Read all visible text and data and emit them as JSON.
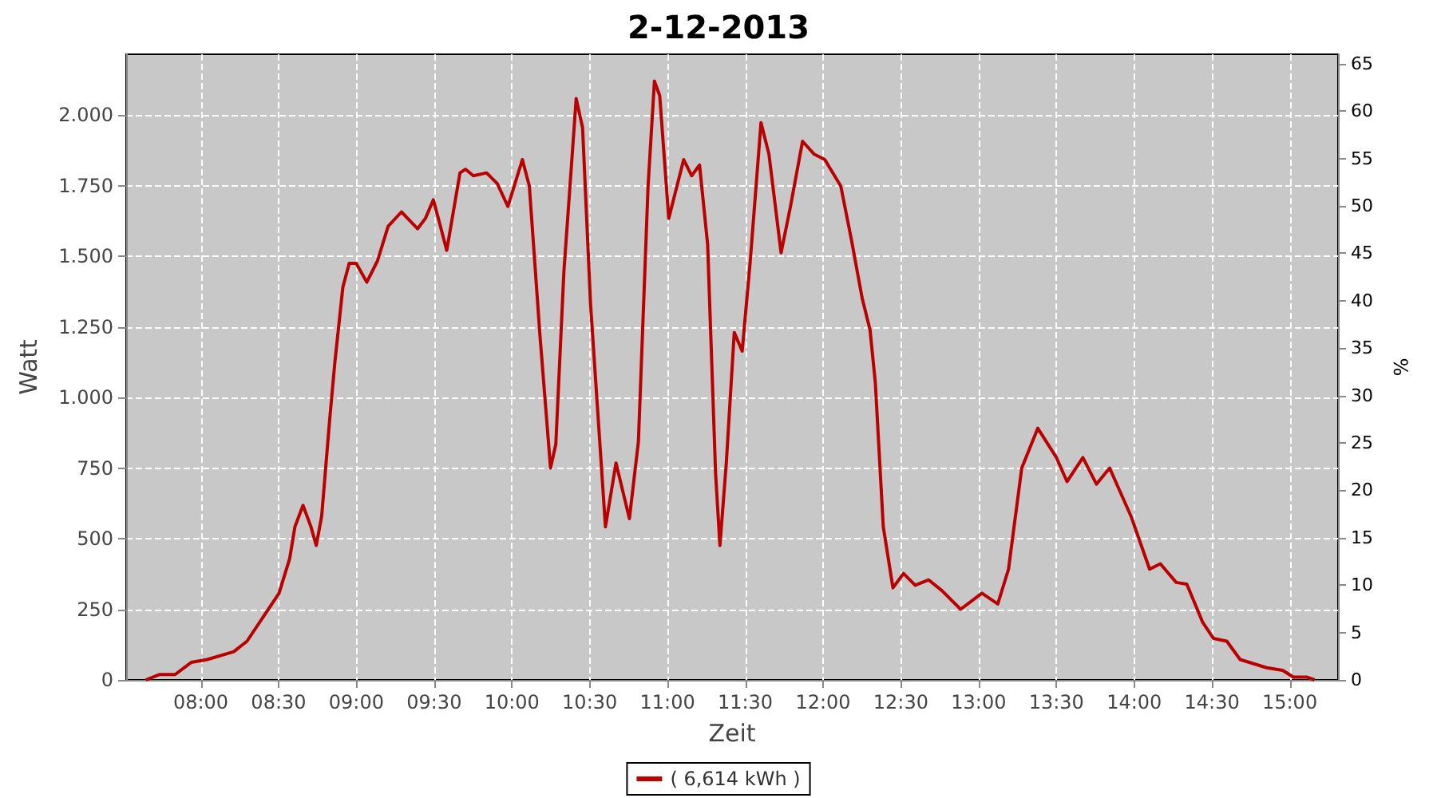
{
  "chart_data": {
    "type": "line",
    "title": "2-12-2013",
    "xlabel": "Zeit",
    "ylabel": "Watt",
    "y2label": "%",
    "xlim": [
      7.52,
      15.31
    ],
    "xticks": [
      {
        "value": 8,
        "label": "08:00"
      },
      {
        "value": 8.5,
        "label": "08:30"
      },
      {
        "value": 9,
        "label": "09:00"
      },
      {
        "value": 9.5,
        "label": "09:30"
      },
      {
        "value": 10,
        "label": "10:00"
      },
      {
        "value": 10.5,
        "label": "10:30"
      },
      {
        "value": 11,
        "label": "11:00"
      },
      {
        "value": 11.5,
        "label": "11:30"
      },
      {
        "value": 12,
        "label": "12:00"
      },
      {
        "value": 12.5,
        "label": "12:30"
      },
      {
        "value": 13,
        "label": "13:00"
      },
      {
        "value": 13.5,
        "label": "13:30"
      },
      {
        "value": 14,
        "label": "14:00"
      },
      {
        "value": 14.5,
        "label": "14:30"
      },
      {
        "value": 15,
        "label": "15:00"
      }
    ],
    "ylim": [
      0,
      2215
    ],
    "yticks": [
      0,
      250,
      500,
      750,
      {
        "value": 1000,
        "label": "1.000"
      },
      {
        "value": 1250,
        "label": "1.250"
      },
      {
        "value": 1500,
        "label": "1.500"
      },
      {
        "value": 1750,
        "label": "1.750"
      },
      {
        "value": 2000,
        "label": "2.000"
      }
    ],
    "y2lim": [
      0,
      66
    ],
    "y2ticks": [
      0,
      5,
      10,
      15,
      20,
      25,
      30,
      35,
      40,
      45,
      50,
      55,
      60,
      65
    ],
    "grid": true,
    "legend": "bottom",
    "marker": "none",
    "line_style": "solid",
    "series": [
      {
        "name": "( 6,614 kWh )",
        "color": "#bb0000",
        "x": [
          7.647,
          7.733,
          7.835,
          7.938,
          8.041,
          8.212,
          8.297,
          8.4,
          8.503,
          8.571,
          8.605,
          8.657,
          8.708,
          8.742,
          8.777,
          8.828,
          8.862,
          8.913,
          8.954,
          8.999,
          9.067,
          9.136,
          9.204,
          9.29,
          9.393,
          9.444,
          9.495,
          9.581,
          9.666,
          9.701,
          9.752,
          9.837,
          9.906,
          9.974,
          10.067,
          10.112,
          10.18,
          10.248,
          10.282,
          10.334,
          10.413,
          10.454,
          10.505,
          10.601,
          10.669,
          10.755,
          10.813,
          10.875,
          10.916,
          10.95,
          11.008,
          11.104,
          11.155,
          11.206,
          11.258,
          11.309,
          11.337,
          11.378,
          11.429,
          11.48,
          11.532,
          11.601,
          11.652,
          11.73,
          11.789,
          11.868,
          11.943,
          12.011,
          12.114,
          12.182,
          12.251,
          12.302,
          12.336,
          12.387,
          12.449,
          12.517,
          12.592,
          12.679,
          12.764,
          12.884,
          13.021,
          13.123,
          13.192,
          13.277,
          13.38,
          13.5,
          13.568,
          13.67,
          13.757,
          13.842,
          13.979,
          14.099,
          14.168,
          14.27,
          14.338,
          14.441,
          14.509,
          14.595,
          14.681,
          14.851,
          14.954,
          15.023,
          15.108,
          15.159
        ],
        "values": [
          0,
          19,
          19,
          62,
          72,
          100,
          137,
          222,
          307,
          429,
          542,
          618,
          542,
          476,
          580,
          919,
          1126,
          1390,
          1475,
          1475,
          1408,
          1484,
          1606,
          1657,
          1597,
          1634,
          1700,
          1521,
          1795,
          1808,
          1785,
          1795,
          1757,
          1676,
          1842,
          1748,
          1220,
          750,
          834,
          1446,
          2058,
          1955,
          1333,
          542,
          768,
          571,
          844,
          1748,
          2120,
          2068,
          1634,
          1842,
          1785,
          1823,
          1541,
          731,
          476,
          768,
          1230,
          1164,
          1484,
          1973,
          1861,
          1512,
          1672,
          1907,
          1861,
          1842,
          1748,
          1559,
          1352,
          1239,
          1051,
          542,
          326,
          377,
          335,
          354,
          316,
          250,
          307,
          269,
          392,
          750,
          891,
          787,
          702,
          787,
          693,
          750,
          580,
          392,
          411,
          345,
          339,
          203,
          147,
          137,
          72,
          43,
          34,
          10,
          10,
          0
        ]
      }
    ]
  }
}
